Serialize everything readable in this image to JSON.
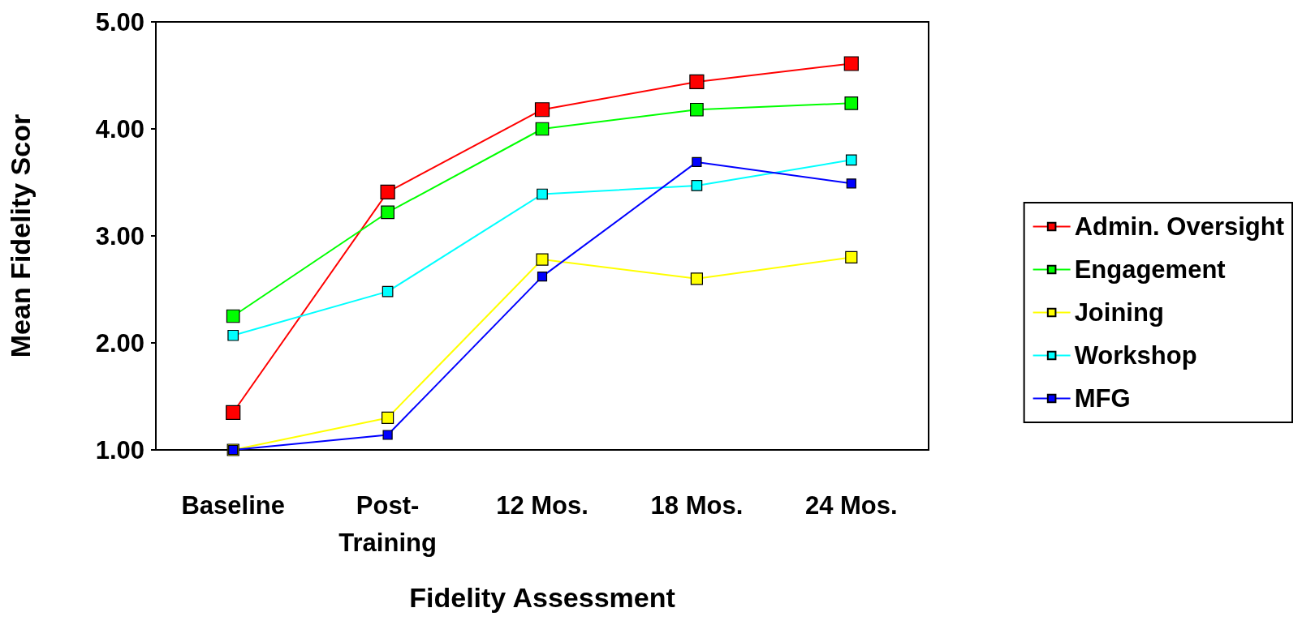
{
  "chart_data": {
    "type": "line",
    "xlabel": "Fidelity Assessment",
    "ylabel": "Mean Fidelity Scor",
    "categories": [
      "Baseline",
      "Post-\nTraining",
      "12 Mos.",
      "18 Mos.",
      "24 Mos."
    ],
    "series": [
      {
        "name": "Admin. Oversight",
        "color": "#ff0000",
        "values": [
          1.35,
          3.41,
          4.18,
          4.44,
          4.61
        ]
      },
      {
        "name": "Engagement",
        "color": "#00ff00",
        "values": [
          2.25,
          3.22,
          4.0,
          4.18,
          4.24
        ]
      },
      {
        "name": "Joining",
        "color": "#ffff00",
        "values": [
          1.0,
          1.3,
          2.78,
          2.6,
          2.8
        ]
      },
      {
        "name": "Workshop",
        "color": "#00ffff",
        "values": [
          2.07,
          2.48,
          3.39,
          3.47,
          3.71
        ]
      },
      {
        "name": "MFG",
        "color": "#0000ff",
        "values": [
          1.0,
          1.14,
          2.62,
          3.69,
          3.49
        ]
      }
    ],
    "ylim": [
      1,
      5
    ],
    "yticks": [
      {
        "value": 1,
        "label": "1.00"
      },
      {
        "value": 2,
        "label": "2.00"
      },
      {
        "value": 3,
        "label": "3.00"
      },
      {
        "value": 4,
        "label": "4.00"
      },
      {
        "value": 5,
        "label": "5.00"
      }
    ],
    "grid": false,
    "legend": "right",
    "marker": "square",
    "line_style": "solid"
  }
}
